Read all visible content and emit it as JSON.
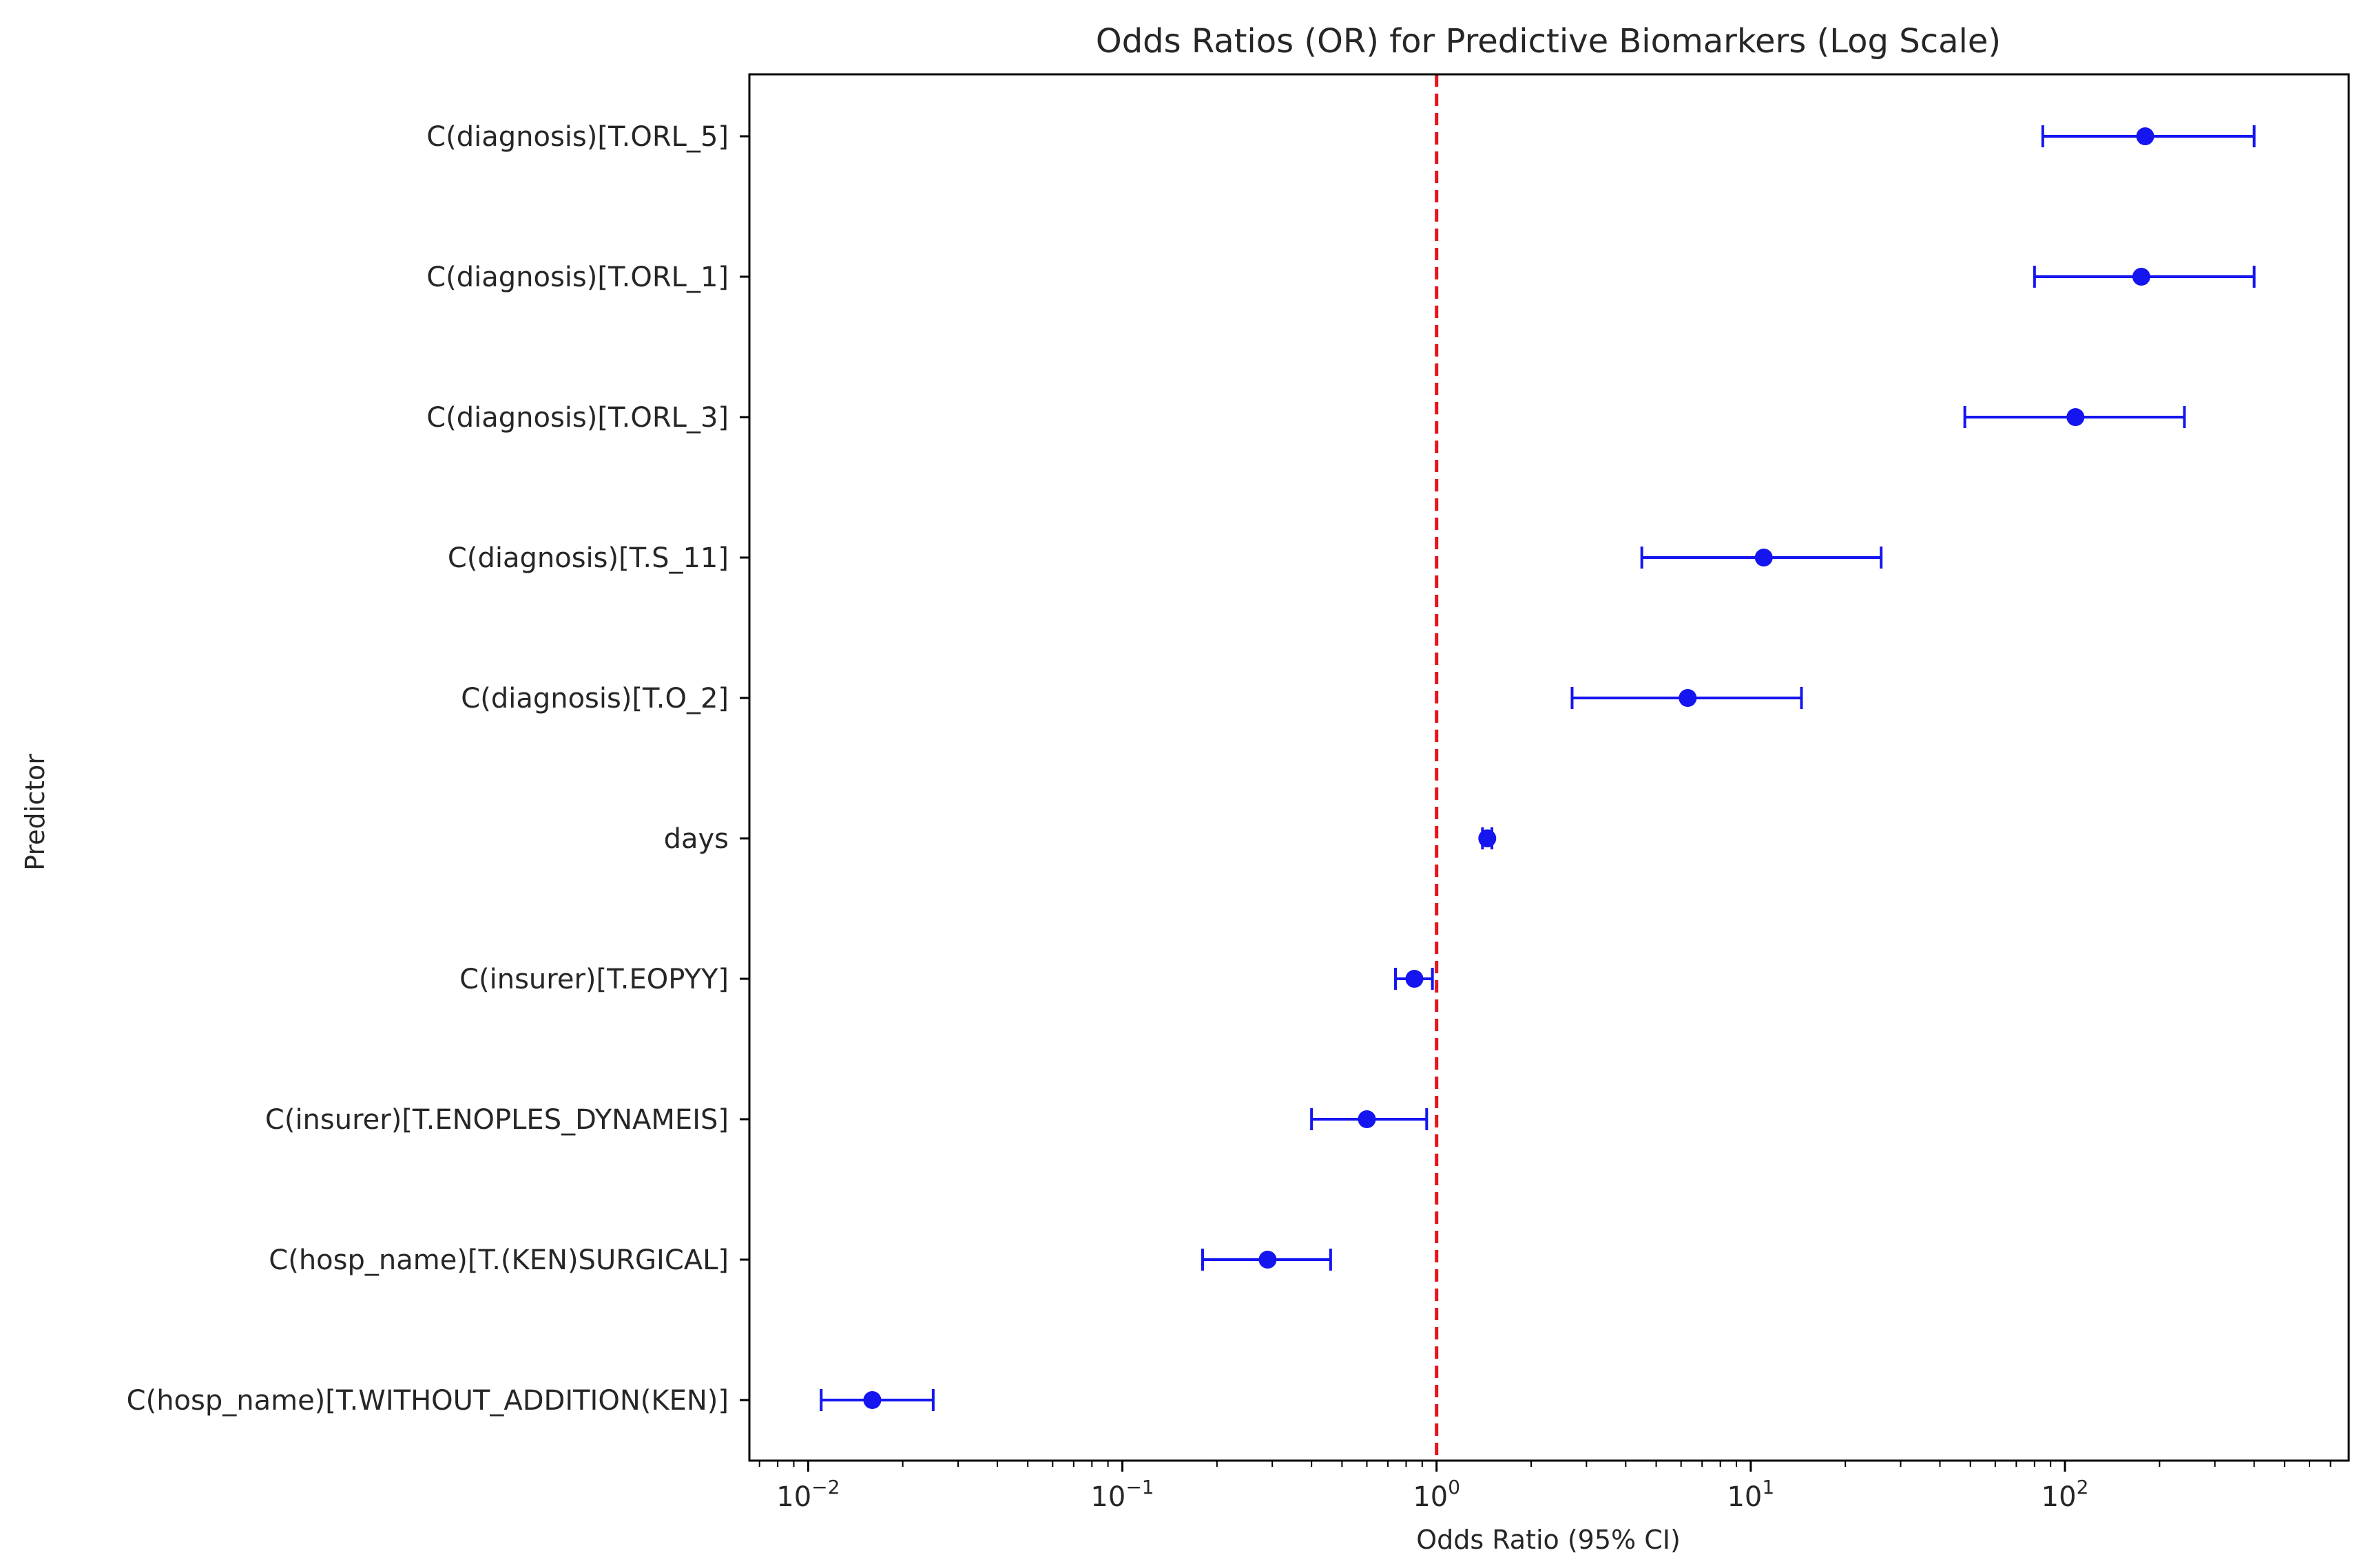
{
  "chart_data": {
    "type": "scatter",
    "title": "Odds Ratios (OR) for Predictive Biomarkers (Log Scale)",
    "xlabel": "Odds Ratio (95% CI)",
    "ylabel": "Predictor",
    "x_scale": "log",
    "xlim": [
      0.0065,
      800
    ],
    "x_ticks": [
      {
        "value": 0.01,
        "base": "10",
        "exp": "−2"
      },
      {
        "value": 0.1,
        "base": "10",
        "exp": "−1"
      },
      {
        "value": 1,
        "base": "10",
        "exp": "0"
      },
      {
        "value": 10,
        "base": "10",
        "exp": "1"
      },
      {
        "value": 100,
        "base": "10",
        "exp": "2"
      }
    ],
    "reference_line": {
      "x": 1,
      "style": "dashed",
      "color": "#e8141d"
    },
    "grid": false,
    "colors": {
      "series": "#1515f0",
      "reference": "#e8141d",
      "axes": "#000000"
    },
    "rows": [
      {
        "label": "C(diagnosis)[T.ORL_5]",
        "or": 180,
        "ci_low": 85,
        "ci_high": 400
      },
      {
        "label": "C(diagnosis)[T.ORL_1]",
        "or": 175,
        "ci_low": 80,
        "ci_high": 400
      },
      {
        "label": "C(diagnosis)[T.ORL_3]",
        "or": 108,
        "ci_low": 48,
        "ci_high": 240
      },
      {
        "label": "C(diagnosis)[T.S_11]",
        "or": 11,
        "ci_low": 4.5,
        "ci_high": 26
      },
      {
        "label": "C(diagnosis)[T.O_2]",
        "or": 6.3,
        "ci_low": 2.7,
        "ci_high": 14.5
      },
      {
        "label": "days",
        "or": 1.45,
        "ci_low": 1.4,
        "ci_high": 1.5
      },
      {
        "label": "C(insurer)[T.EOPYY]",
        "or": 0.85,
        "ci_low": 0.74,
        "ci_high": 0.97
      },
      {
        "label": "C(insurer)[T.ENOPLES_DYNAMEIS]",
        "or": 0.6,
        "ci_low": 0.4,
        "ci_high": 0.93
      },
      {
        "label": "C(hosp_name)[T.(KEN)SURGICAL]",
        "or": 0.29,
        "ci_low": 0.18,
        "ci_high": 0.46
      },
      {
        "label": "C(hosp_name)[T.WITHOUT_ADDITION(KEN)]",
        "or": 0.016,
        "ci_low": 0.011,
        "ci_high": 0.025
      }
    ]
  }
}
